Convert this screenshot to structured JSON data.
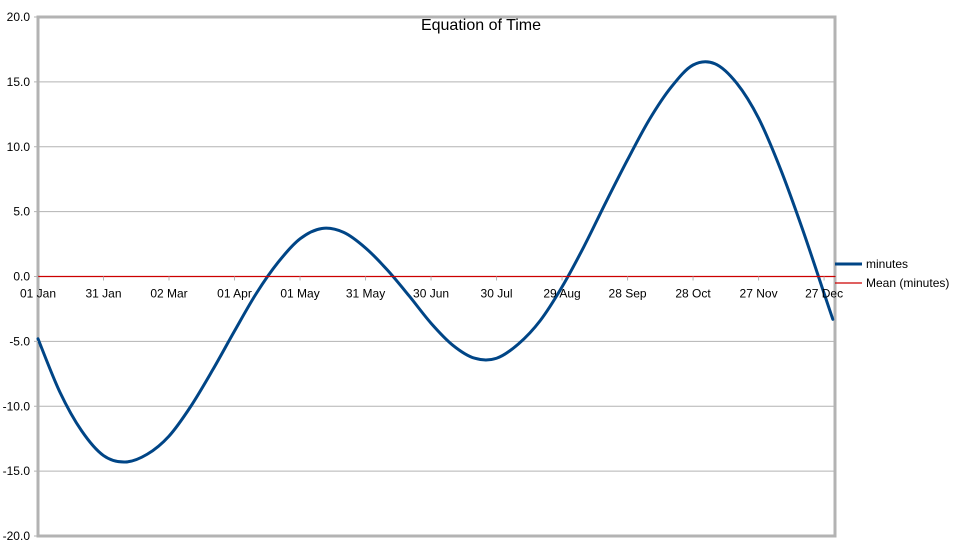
{
  "chart_data": {
    "type": "line",
    "title": "Equation of Time",
    "xlabel": "",
    "ylabel": "",
    "ylim": [
      -20,
      20
    ],
    "yticks": [
      "20.0",
      "15.0",
      "10.0",
      "5.0",
      "0.0",
      "-5.0",
      "-10.0",
      "-15.0",
      "-20.0"
    ],
    "xlim": [
      "01 Jan",
      "31 Dec"
    ],
    "xticks": [
      "01 Jan",
      "31 Jan",
      "02 Mar",
      "01 Apr",
      "01 May",
      "31 May",
      "30 Jun",
      "30 Jul",
      "29 Aug",
      "28 Sep",
      "28 Oct",
      "27 Nov",
      "27 Dec"
    ],
    "grid": true,
    "legend_position": "right",
    "series": [
      {
        "name": "minutes",
        "color": "#004586",
        "x": [
          "01 Jan",
          "11 Jan",
          "21 Jan",
          "31 Jan",
          "10 Feb",
          "20 Feb",
          "02 Mar",
          "12 Mar",
          "22 Mar",
          "01 Apr",
          "11 Apr",
          "21 Apr",
          "01 May",
          "11 May",
          "21 May",
          "31 May",
          "10 Jun",
          "20 Jun",
          "30 Jun",
          "10 Jul",
          "20 Jul",
          "30 Jul",
          "09 Aug",
          "19 Aug",
          "29 Aug",
          "08 Sep",
          "18 Sep",
          "28 Sep",
          "08 Oct",
          "18 Oct",
          "28 Oct",
          "07 Nov",
          "17 Nov",
          "27 Nov",
          "07 Dec",
          "17 Dec",
          "27 Dec",
          "31 Dec"
        ],
        "y": [
          -4.8,
          -8.9,
          -11.9,
          -13.8,
          -14.3,
          -13.7,
          -12.3,
          -10.0,
          -7.2,
          -4.2,
          -1.3,
          1.1,
          2.9,
          3.7,
          3.4,
          2.2,
          0.5,
          -1.5,
          -3.6,
          -5.3,
          -6.3,
          -6.3,
          -5.2,
          -3.4,
          -0.8,
          2.3,
          5.7,
          9.0,
          12.1,
          14.6,
          16.3,
          16.4,
          14.9,
          12.2,
          8.3,
          3.7,
          -1.3,
          -3.3
        ]
      },
      {
        "name": "Mean (minutes)",
        "color": "#cc0000",
        "x": [
          "01 Jan",
          "31 Dec"
        ],
        "y": [
          0,
          0
        ]
      }
    ]
  }
}
